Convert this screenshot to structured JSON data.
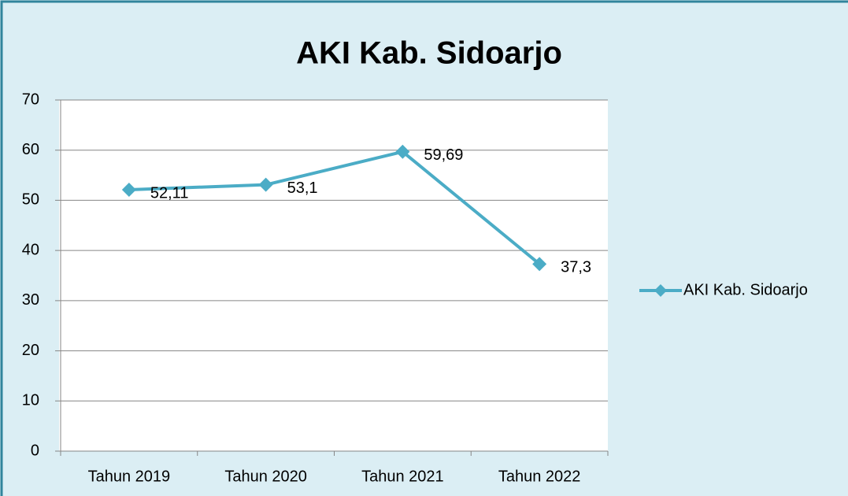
{
  "chart_data": {
    "type": "line",
    "title": "AKI Kab. Sidoarjo",
    "categories": [
      "Tahun 2019",
      "Tahun 2020",
      "Tahun 2021",
      "Tahun 2022"
    ],
    "series": [
      {
        "name": "AKI Kab. Sidoarjo",
        "color": "#4bacc6",
        "values": [
          52.11,
          53.1,
          59.69,
          37.3
        ],
        "value_labels": [
          "52,11",
          "53,1",
          "59,69",
          "37,3"
        ]
      }
    ],
    "ylim": [
      0,
      70
    ],
    "yticks": [
      0,
      10,
      20,
      30,
      40,
      50,
      60,
      70
    ],
    "grid": true,
    "legend": "right"
  }
}
